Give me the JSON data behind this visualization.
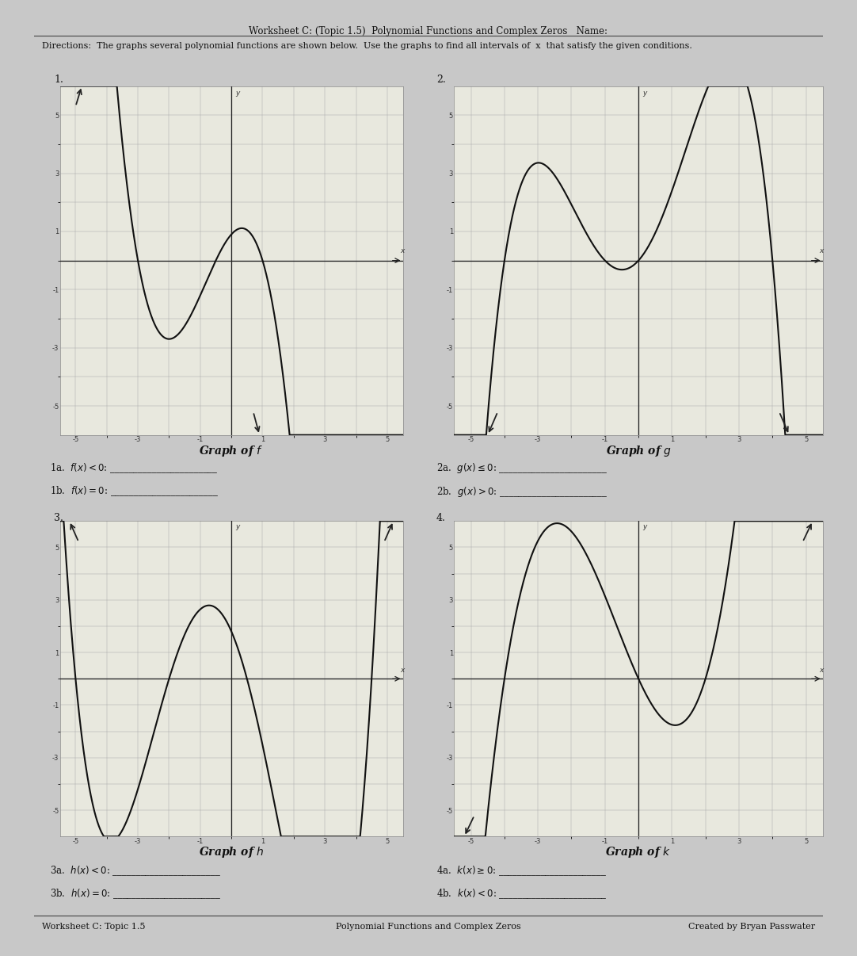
{
  "title": "Worksheet C: (Topic 1.5)  Polynomial Functions and Complex Zeros   Name:",
  "directions": "Directions:  The graphs several polynomial functions are shown below.  Use the graphs to find all intervals of  x  that satisfy the given conditions.",
  "graph1_label": "Graph of $f$",
  "graph2_label": "Graph of $g$",
  "graph3_label": "Graph of $h$",
  "graph4_label": "Graph of $k$",
  "q1a": "1a.  $f(x)<0$: _______________________",
  "q1b": "1b.  $f(x)=0$: _______________________",
  "q2a": "2a.  $g(x)\\leq 0$: _______________________",
  "q2b": "2b.  $g(x)>0$: _______________________",
  "q3a": "3a.  $h(x)<0$: _______________________",
  "q3b": "3b.  $h(x)=0$: _______________________",
  "q4a": "4a.  $k(x)\\geq 0$: _______________________",
  "q4b": "4b.  $k(x)<0$: _______________________",
  "footer_left": "Worksheet C: Topic 1.5",
  "footer_center": "Polynomial Functions and Complex Zeros",
  "footer_right": "Created by Bryan Passwater",
  "bg_color": "#c8c8c8",
  "paper_color": "#e4e4dc",
  "graph_bg": "#e8e8de",
  "curve_color": "#111111",
  "grid_color": "#aaaaaa",
  "axis_color": "#222222",
  "num1": "1.",
  "num2": "2.",
  "num3": "3.",
  "num4": "4."
}
